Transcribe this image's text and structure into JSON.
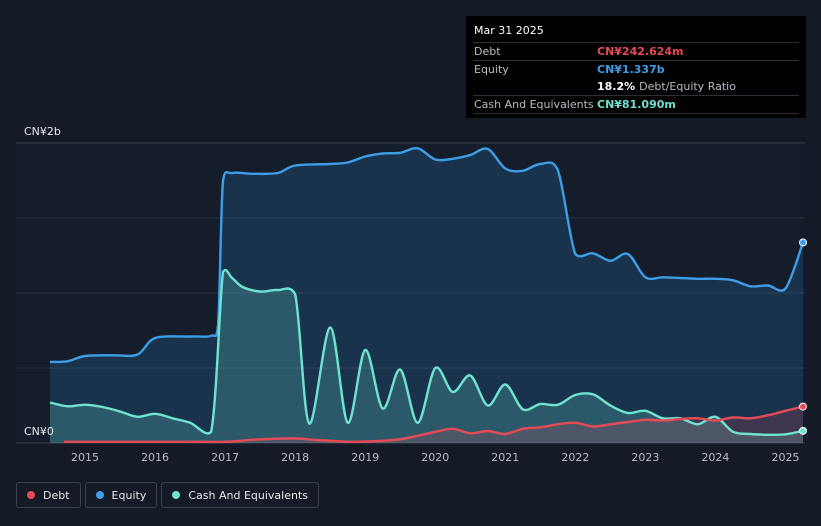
{
  "tooltip": {
    "date": "Mar 31 2025",
    "debt_label": "Debt",
    "debt_value": "CN¥242.624m",
    "equity_label": "Equity",
    "equity_value": "CN¥1.337b",
    "ratio_value": "18.2%",
    "ratio_label": "Debt/Equity Ratio",
    "cash_label": "Cash And Equivalents",
    "cash_value": "CN¥81.090m"
  },
  "legend": [
    {
      "label": "Debt",
      "color": "#e64a57"
    },
    {
      "label": "Equity",
      "color": "#3d9ee8"
    },
    {
      "label": "Cash And Equivalents",
      "color": "#6fe3cf"
    }
  ],
  "chart_data": {
    "type": "area",
    "title": "",
    "xlabel": "",
    "ylabel": "",
    "y_tick_labels": [
      "CN¥2b",
      "CN¥0"
    ],
    "ylim": [
      0,
      2000
    ],
    "y_unit": "CN¥ millions",
    "xlim": [
      2014.5,
      2025.25
    ],
    "x_ticks": [
      2015,
      2016,
      2017,
      2018,
      2019,
      2020,
      2021,
      2022,
      2023,
      2024,
      2025
    ],
    "grid": true,
    "legend_position": "bottom-left",
    "series": [
      {
        "name": "Equity",
        "color": "#3d9ee8",
        "points": [
          [
            2014.5,
            540
          ],
          [
            2014.75,
            545
          ],
          [
            2015,
            580
          ],
          [
            2015.4,
            585
          ],
          [
            2015.75,
            590
          ],
          [
            2016,
            700
          ],
          [
            2016.5,
            710
          ],
          [
            2016.8,
            715
          ],
          [
            2016.9,
            790
          ],
          [
            2016.97,
            1750
          ],
          [
            2017.1,
            1800
          ],
          [
            2017.4,
            1795
          ],
          [
            2017.75,
            1800
          ],
          [
            2018,
            1850
          ],
          [
            2018.5,
            1860
          ],
          [
            2018.75,
            1870
          ],
          [
            2019,
            1910
          ],
          [
            2019.25,
            1930
          ],
          [
            2019.5,
            1935
          ],
          [
            2019.75,
            1965
          ],
          [
            2020,
            1890
          ],
          [
            2020.25,
            1895
          ],
          [
            2020.5,
            1920
          ],
          [
            2020.75,
            1960
          ],
          [
            2021,
            1830
          ],
          [
            2021.25,
            1815
          ],
          [
            2021.5,
            1860
          ],
          [
            2021.75,
            1820
          ],
          [
            2022,
            1260
          ],
          [
            2022.25,
            1265
          ],
          [
            2022.5,
            1215
          ],
          [
            2022.75,
            1260
          ],
          [
            2023,
            1105
          ],
          [
            2023.25,
            1105
          ],
          [
            2023.5,
            1100
          ],
          [
            2023.75,
            1095
          ],
          [
            2024,
            1095
          ],
          [
            2024.25,
            1085
          ],
          [
            2024.5,
            1045
          ],
          [
            2024.75,
            1050
          ],
          [
            2025,
            1030
          ],
          [
            2025.25,
            1337
          ]
        ]
      },
      {
        "name": "Cash And Equivalents",
        "color": "#6fe3cf",
        "points": [
          [
            2014.5,
            270
          ],
          [
            2014.75,
            245
          ],
          [
            2015,
            255
          ],
          [
            2015.25,
            240
          ],
          [
            2015.5,
            210
          ],
          [
            2015.75,
            175
          ],
          [
            2016,
            195
          ],
          [
            2016.25,
            165
          ],
          [
            2016.5,
            135
          ],
          [
            2016.8,
            75
          ],
          [
            2016.97,
            1140
          ],
          [
            2017.1,
            1100
          ],
          [
            2017.25,
            1040
          ],
          [
            2017.5,
            1010
          ],
          [
            2017.75,
            1020
          ],
          [
            2018,
            990
          ],
          [
            2018.2,
            130
          ],
          [
            2018.5,
            770
          ],
          [
            2018.75,
            135
          ],
          [
            2019,
            620
          ],
          [
            2019.25,
            230
          ],
          [
            2019.5,
            490
          ],
          [
            2019.75,
            135
          ],
          [
            2020,
            500
          ],
          [
            2020.25,
            340
          ],
          [
            2020.5,
            450
          ],
          [
            2020.75,
            250
          ],
          [
            2021,
            390
          ],
          [
            2021.25,
            225
          ],
          [
            2021.5,
            260
          ],
          [
            2021.75,
            255
          ],
          [
            2022,
            320
          ],
          [
            2022.25,
            325
          ],
          [
            2022.5,
            250
          ],
          [
            2022.75,
            200
          ],
          [
            2023,
            215
          ],
          [
            2023.25,
            165
          ],
          [
            2023.5,
            165
          ],
          [
            2023.75,
            125
          ],
          [
            2024,
            175
          ],
          [
            2024.25,
            75
          ],
          [
            2024.5,
            60
          ],
          [
            2024.75,
            55
          ],
          [
            2025,
            58
          ],
          [
            2025.25,
            81.09
          ]
        ]
      },
      {
        "name": "Debt",
        "color": "#e64a57",
        "points": [
          [
            2014.7,
            8
          ],
          [
            2015,
            8
          ],
          [
            2015.5,
            8
          ],
          [
            2016,
            8
          ],
          [
            2016.5,
            8
          ],
          [
            2017,
            8
          ],
          [
            2017.5,
            25
          ],
          [
            2018,
            30
          ],
          [
            2018.3,
            20
          ],
          [
            2018.75,
            8
          ],
          [
            2019,
            10
          ],
          [
            2019.5,
            25
          ],
          [
            2020,
            75
          ],
          [
            2020.25,
            95
          ],
          [
            2020.5,
            65
          ],
          [
            2020.75,
            80
          ],
          [
            2021,
            60
          ],
          [
            2021.25,
            95
          ],
          [
            2021.5,
            105
          ],
          [
            2021.75,
            125
          ],
          [
            2022,
            135
          ],
          [
            2022.25,
            110
          ],
          [
            2022.5,
            125
          ],
          [
            2022.75,
            140
          ],
          [
            2023,
            155
          ],
          [
            2023.25,
            150
          ],
          [
            2023.5,
            160
          ],
          [
            2023.75,
            165
          ],
          [
            2024,
            150
          ],
          [
            2024.25,
            170
          ],
          [
            2024.5,
            165
          ],
          [
            2024.75,
            185
          ],
          [
            2025,
            215
          ],
          [
            2025.25,
            242.624
          ]
        ]
      }
    ]
  }
}
